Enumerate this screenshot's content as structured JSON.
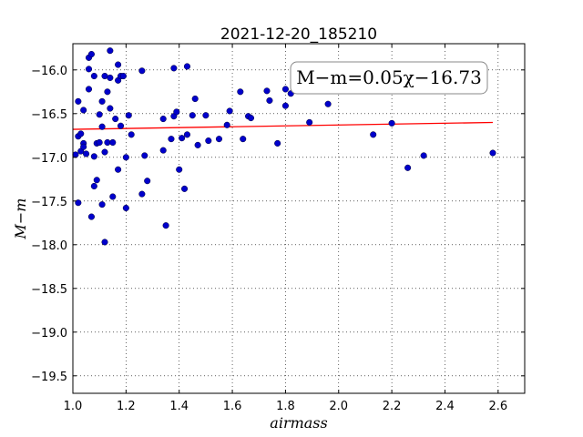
{
  "chart_data": {
    "type": "scatter",
    "title": "2021-12-20_185210",
    "xlabel": "airmass",
    "ylabel": "M−m",
    "xlim": [
      1.0,
      2.7
    ],
    "ylim": [
      -15.7,
      -19.7
    ],
    "y_inverted": true,
    "grid": true,
    "x_ticks": [
      "1.0",
      "1.2",
      "1.4",
      "1.6",
      "1.8",
      "2.0",
      "2.2",
      "2.4",
      "2.6"
    ],
    "x_tick_values": [
      1.0,
      1.2,
      1.4,
      1.6,
      1.8,
      2.0,
      2.2,
      2.4,
      2.6
    ],
    "y_ticks": [
      "−16.0",
      "−16.5",
      "−17.0",
      "−17.5",
      "−18.0",
      "−18.5",
      "−19.0",
      "−19.5"
    ],
    "y_tick_values": [
      -16.0,
      -16.5,
      -17.0,
      -17.5,
      -18.0,
      -18.5,
      -19.0,
      -19.5
    ],
    "annotation": "M−m=0.05χ−16.73",
    "fit": {
      "slope": 0.05,
      "intercept": -16.73,
      "x_range": [
        1.0,
        2.58
      ],
      "color": "#ff0000"
    },
    "point_color": "#0000cc",
    "points": [
      [
        1.01,
        -16.97
      ],
      [
        1.02,
        -16.36
      ],
      [
        1.02,
        -16.76
      ],
      [
        1.02,
        -17.52
      ],
      [
        1.03,
        -16.73
      ],
      [
        1.03,
        -16.93
      ],
      [
        1.04,
        -16.84
      ],
      [
        1.04,
        -16.88
      ],
      [
        1.04,
        -16.46
      ],
      [
        1.05,
        -16.96
      ],
      [
        1.06,
        -15.86
      ],
      [
        1.06,
        -16.22
      ],
      [
        1.06,
        -15.99
      ],
      [
        1.07,
        -15.82
      ],
      [
        1.07,
        -17.68
      ],
      [
        1.08,
        -16.07
      ],
      [
        1.08,
        -16.99
      ],
      [
        1.08,
        -17.33
      ],
      [
        1.09,
        -17.26
      ],
      [
        1.09,
        -16.84
      ],
      [
        1.1,
        -16.83
      ],
      [
        1.1,
        -16.51
      ],
      [
        1.11,
        -16.65
      ],
      [
        1.11,
        -16.36
      ],
      [
        1.11,
        -17.54
      ],
      [
        1.12,
        -16.94
      ],
      [
        1.12,
        -16.07
      ],
      [
        1.12,
        -17.97
      ],
      [
        1.13,
        -16.25
      ],
      [
        1.13,
        -16.83
      ],
      [
        1.14,
        -16.09
      ],
      [
        1.14,
        -15.78
      ],
      [
        1.14,
        -16.44
      ],
      [
        1.15,
        -16.83
      ],
      [
        1.15,
        -17.45
      ],
      [
        1.16,
        -16.56
      ],
      [
        1.17,
        -15.94
      ],
      [
        1.17,
        -16.12
      ],
      [
        1.17,
        -17.14
      ],
      [
        1.18,
        -16.07
      ],
      [
        1.18,
        -16.64
      ],
      [
        1.19,
        -16.07
      ],
      [
        1.2,
        -17.0
      ],
      [
        1.2,
        -17.58
      ],
      [
        1.21,
        -16.52
      ],
      [
        1.22,
        -16.74
      ],
      [
        1.26,
        -16.01
      ],
      [
        1.26,
        -17.42
      ],
      [
        1.27,
        -16.98
      ],
      [
        1.28,
        -17.27
      ],
      [
        1.34,
        -16.92
      ],
      [
        1.34,
        -16.56
      ],
      [
        1.35,
        -17.78
      ],
      [
        1.37,
        -16.79
      ],
      [
        1.38,
        -15.98
      ],
      [
        1.38,
        -16.53
      ],
      [
        1.39,
        -16.48
      ],
      [
        1.4,
        -17.14
      ],
      [
        1.41,
        -16.78
      ],
      [
        1.42,
        -17.36
      ],
      [
        1.43,
        -15.96
      ],
      [
        1.43,
        -16.74
      ],
      [
        1.45,
        -16.52
      ],
      [
        1.46,
        -16.33
      ],
      [
        1.47,
        -16.86
      ],
      [
        1.5,
        -16.52
      ],
      [
        1.51,
        -16.81
      ],
      [
        1.55,
        -16.79
      ],
      [
        1.58,
        -16.63
      ],
      [
        1.59,
        -16.47
      ],
      [
        1.63,
        -16.25
      ],
      [
        1.64,
        -16.79
      ],
      [
        1.66,
        -16.53
      ],
      [
        1.67,
        -16.55
      ],
      [
        1.73,
        -16.24
      ],
      [
        1.74,
        -16.35
      ],
      [
        1.77,
        -16.84
      ],
      [
        1.8,
        -16.41
      ],
      [
        1.8,
        -16.22
      ],
      [
        1.82,
        -16.27
      ],
      [
        1.89,
        -16.6
      ],
      [
        1.96,
        -16.39
      ],
      [
        2.13,
        -16.74
      ],
      [
        2.2,
        -16.61
      ],
      [
        2.26,
        -17.12
      ],
      [
        2.32,
        -16.98
      ],
      [
        2.58,
        -16.95
      ]
    ]
  }
}
